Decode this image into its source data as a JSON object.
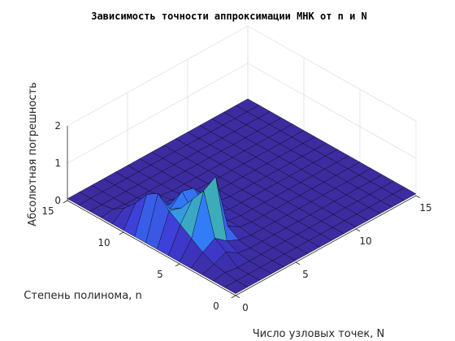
{
  "chart_data": {
    "type": "surface",
    "title": "Зависимость точности аппроксимации МНК от n и N",
    "xlabel": "Число узловых точек, N",
    "ylabel": "Степень полинома, n",
    "zlabel": "Абсолютная погрешность",
    "xlim": [
      0,
      15
    ],
    "ylim": [
      0,
      15
    ],
    "zlim": [
      0,
      2
    ],
    "xticks": [
      "0",
      "5",
      "10",
      "15"
    ],
    "yticks": [
      "0",
      "5",
      "10",
      "15"
    ],
    "zticks": [
      "0",
      "1",
      "2"
    ],
    "grid": "on",
    "colormap": [
      "#3b2a98",
      "#3f3bd6",
      "#2f8cff",
      "#46c28a",
      "#a6d23a",
      "#f6c93a"
    ],
    "x": [
      0,
      1,
      2,
      3,
      4,
      5,
      6,
      7,
      8,
      9,
      10,
      11,
      12,
      13,
      14,
      15
    ],
    "y": [
      0,
      1,
      2,
      3,
      4,
      5,
      6,
      7,
      8,
      9,
      10,
      11,
      12,
      13,
      14,
      15
    ],
    "z": [
      [
        0.05,
        0.05,
        0.05,
        0.05,
        0.05,
        0.05,
        0.05,
        0.05,
        0.05,
        0.05,
        0.05,
        0.05,
        0.05,
        0.05,
        0.05,
        0.05
      ],
      [
        0.05,
        0.05,
        0.05,
        0.05,
        0.05,
        0.05,
        0.05,
        0.05,
        0.05,
        0.05,
        0.05,
        0.05,
        0.05,
        0.05,
        0.05,
        0.05
      ],
      [
        0.05,
        0.1,
        0.05,
        0.05,
        0.05,
        0.05,
        0.05,
        0.05,
        0.05,
        0.05,
        0.05,
        0.05,
        0.05,
        0.05,
        0.05,
        0.05
      ],
      [
        0.05,
        0.15,
        0.3,
        0.1,
        0.05,
        0.05,
        0.05,
        0.05,
        0.05,
        0.05,
        0.05,
        0.05,
        0.05,
        0.05,
        0.05,
        0.05
      ],
      [
        0.05,
        0.3,
        0.5,
        0.25,
        0.1,
        0.05,
        0.05,
        0.05,
        0.05,
        0.05,
        0.05,
        0.05,
        0.05,
        0.05,
        0.05,
        0.05
      ],
      [
        0.05,
        0.5,
        1.6,
        1.8,
        0.3,
        0.1,
        0.05,
        0.05,
        0.05,
        0.05,
        0.05,
        0.05,
        0.05,
        0.05,
        0.05,
        0.05
      ],
      [
        0.05,
        0.7,
        1.2,
        0.6,
        0.3,
        0.1,
        0.05,
        0.05,
        0.05,
        0.05,
        0.05,
        0.05,
        0.05,
        0.05,
        0.05,
        0.05
      ],
      [
        0.05,
        0.9,
        0.8,
        0.5,
        0.5,
        0.2,
        0.05,
        0.05,
        0.05,
        0.05,
        0.05,
        0.05,
        0.05,
        0.05,
        0.05,
        0.05
      ],
      [
        0.05,
        1.2,
        0.6,
        0.9,
        0.8,
        0.4,
        0.1,
        0.05,
        0.05,
        0.05,
        0.05,
        0.05,
        0.05,
        0.05,
        0.05,
        0.05
      ],
      [
        0.05,
        1.0,
        0.4,
        0.4,
        0.3,
        0.2,
        0.1,
        0.05,
        0.05,
        0.05,
        0.05,
        0.05,
        0.05,
        0.05,
        0.05,
        0.05
      ],
      [
        0.05,
        0.6,
        0.2,
        0.2,
        0.15,
        0.1,
        0.05,
        0.05,
        0.05,
        0.05,
        0.05,
        0.05,
        0.05,
        0.05,
        0.05,
        0.05
      ],
      [
        0.05,
        0.3,
        0.1,
        0.1,
        0.1,
        0.05,
        0.05,
        0.05,
        0.05,
        0.05,
        0.05,
        0.05,
        0.05,
        0.05,
        0.05,
        0.05
      ],
      [
        0.05,
        0.1,
        0.05,
        0.05,
        0.05,
        0.05,
        0.05,
        0.05,
        0.05,
        0.05,
        0.05,
        0.05,
        0.05,
        0.05,
        0.05,
        0.05
      ],
      [
        0.05,
        0.05,
        0.05,
        0.05,
        0.05,
        0.05,
        0.05,
        0.05,
        0.05,
        0.05,
        0.05,
        0.05,
        0.05,
        0.05,
        0.05,
        0.05
      ],
      [
        0.05,
        0.05,
        0.05,
        0.05,
        0.05,
        0.05,
        0.05,
        0.05,
        0.05,
        0.05,
        0.05,
        0.05,
        0.05,
        0.05,
        0.05,
        0.05
      ],
      [
        0.05,
        0.05,
        0.05,
        0.05,
        0.05,
        0.05,
        0.05,
        0.05,
        0.05,
        0.05,
        0.05,
        0.05,
        0.05,
        0.05,
        0.05,
        0.05
      ]
    ]
  }
}
